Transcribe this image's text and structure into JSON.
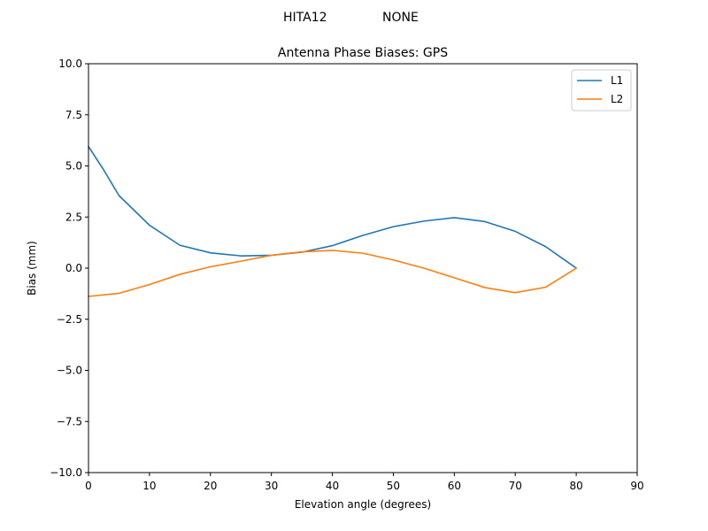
{
  "suptitle": {
    "station": "HITA12",
    "antenna": "NONE"
  },
  "chart_data": {
    "type": "line",
    "title": "Antenna Phase Biases: GPS",
    "xlabel": "Elevation angle (degrees)",
    "ylabel": "Bias (mm)",
    "xlim": [
      0,
      90
    ],
    "ylim": [
      -10,
      10
    ],
    "xticks": [
      0,
      10,
      20,
      30,
      40,
      50,
      60,
      70,
      80,
      90
    ],
    "yticks": [
      -10.0,
      -7.5,
      -5.0,
      -2.5,
      0.0,
      2.5,
      5.0,
      7.5,
      10.0
    ],
    "xtick_labels": [
      "0",
      "10",
      "20",
      "30",
      "40",
      "50",
      "60",
      "70",
      "80",
      "90"
    ],
    "ytick_labels": [
      "−10.0",
      "−7.5",
      "−5.0",
      "−2.5",
      "0.0",
      "2.5",
      "5.0",
      "7.5",
      "10.0"
    ],
    "grid": false,
    "legend_position": "top-right",
    "series": [
      {
        "name": "L1",
        "color": "#1f77b4",
        "x": [
          0,
          2.5,
          5,
          10,
          15,
          20,
          25,
          30,
          35,
          40,
          45,
          50,
          55,
          60,
          65,
          70,
          75,
          80
        ],
        "y": [
          5.95,
          4.8,
          3.55,
          2.1,
          1.12,
          0.75,
          0.6,
          0.63,
          0.78,
          1.1,
          1.6,
          2.03,
          2.3,
          2.47,
          2.28,
          1.8,
          1.05,
          0.0
        ]
      },
      {
        "name": "L2",
        "color": "#ff7f0e",
        "x": [
          0,
          5,
          10,
          15,
          20,
          25,
          30,
          35,
          40,
          45,
          50,
          55,
          60,
          65,
          70,
          75,
          80
        ],
        "y": [
          -1.38,
          -1.23,
          -0.8,
          -0.3,
          0.07,
          0.34,
          0.63,
          0.8,
          0.87,
          0.73,
          0.4,
          0.0,
          -0.47,
          -0.95,
          -1.2,
          -0.93,
          0.0
        ]
      }
    ]
  }
}
